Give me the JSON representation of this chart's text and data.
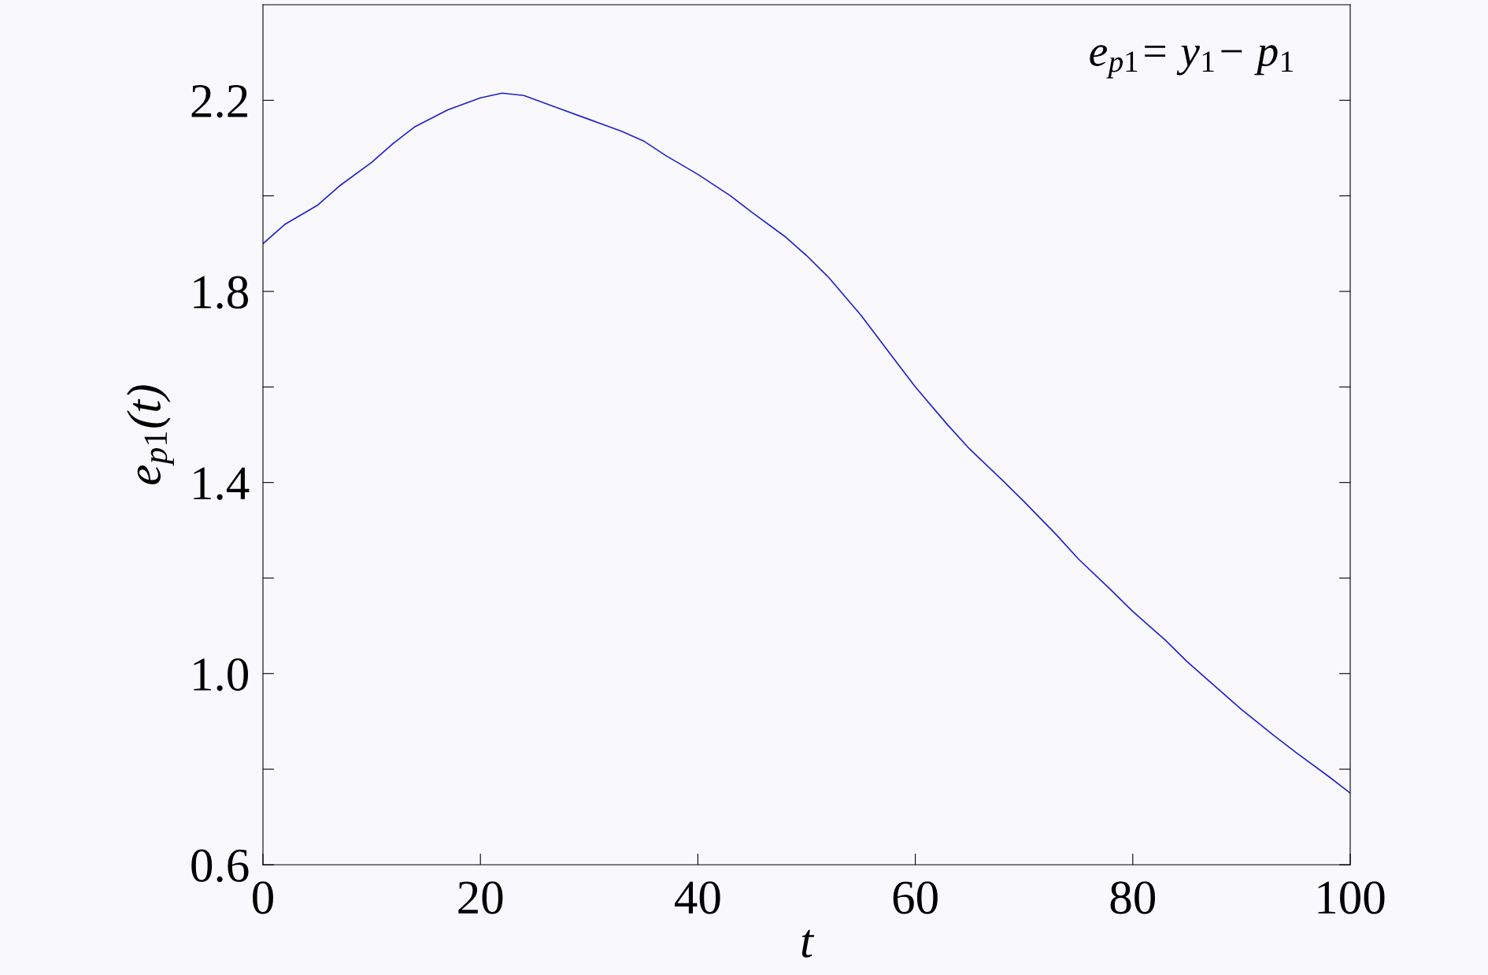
{
  "chart_data": {
    "type": "line",
    "xlabel": "t",
    "ylabel": "e$_{p1}$(t)",
    "annotations": [
      "e$_{p1}$= y$_{1}$− p$_{1}$"
    ],
    "series": [
      {
        "color": "#2020d0",
        "x": [
          0,
          2,
          5,
          7,
          10,
          12,
          14,
          17,
          20,
          22,
          24,
          27,
          30,
          33,
          35,
          37,
          40,
          43,
          45,
          48,
          50,
          52,
          55,
          58,
          60,
          63,
          65,
          68,
          70,
          73,
          75,
          78,
          80,
          83,
          85,
          88,
          90,
          93,
          95,
          98,
          100
        ],
        "values": [
          1.9,
          1.94,
          1.98,
          2.02,
          2.07,
          2.11,
          2.145,
          2.18,
          2.205,
          2.215,
          2.21,
          2.185,
          2.16,
          2.135,
          2.115,
          2.085,
          2.045,
          2.0,
          1.965,
          1.915,
          1.875,
          1.83,
          1.75,
          1.66,
          1.6,
          1.52,
          1.47,
          1.405,
          1.36,
          1.29,
          1.24,
          1.175,
          1.13,
          1.07,
          1.025,
          0.965,
          0.925,
          0.87,
          0.835,
          0.785,
          0.75
        ]
      }
    ],
    "xlim": [
      0,
      100
    ],
    "xticks": [
      0,
      20,
      40,
      60,
      80,
      100
    ],
    "ylim": [
      0.6,
      2.4
    ],
    "yticks": [
      0.6,
      {
        "value": 0.8,
        "label": null
      },
      {
        "value": 1.0,
        "label": "1.0"
      },
      {
        "value": 1.2,
        "label": null
      },
      1.4,
      {
        "value": 1.6,
        "label": null
      },
      1.8,
      {
        "value": 2.0,
        "label": null
      },
      2.2
    ],
    "grid": false
  }
}
